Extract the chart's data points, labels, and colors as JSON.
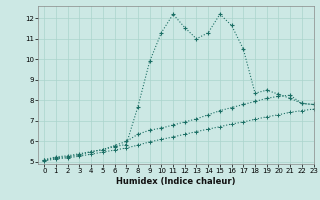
{
  "xlabel": "Humidex (Indice chaleur)",
  "bg_color": "#cce8e4",
  "grid_color": "#aad4cc",
  "line_color": "#1a6e64",
  "xlim": [
    -0.5,
    23
  ],
  "ylim": [
    4.9,
    12.6
  ],
  "yticks": [
    5,
    6,
    7,
    8,
    9,
    10,
    11,
    12
  ],
  "xticks": [
    0,
    1,
    2,
    3,
    4,
    5,
    6,
    7,
    8,
    9,
    10,
    11,
    12,
    13,
    14,
    15,
    16,
    17,
    18,
    19,
    20,
    21,
    22,
    23
  ],
  "line1_x": [
    0,
    1,
    2,
    3,
    4,
    5,
    6,
    7,
    8,
    9,
    10,
    11,
    12,
    13,
    14,
    15,
    16,
    17,
    18,
    19,
    20,
    21,
    22,
    23
  ],
  "line1_y": [
    5.1,
    5.25,
    5.3,
    5.4,
    5.5,
    5.6,
    5.75,
    5.85,
    7.7,
    9.9,
    11.3,
    12.2,
    11.55,
    11.0,
    11.3,
    12.2,
    11.65,
    10.5,
    8.35,
    8.5,
    8.3,
    8.1,
    7.85,
    7.8
  ],
  "line2_x": [
    0,
    1,
    2,
    3,
    4,
    5,
    6,
    7,
    8,
    9,
    10,
    11,
    12,
    13,
    14,
    15,
    16,
    17,
    18,
    19,
    20,
    21,
    22,
    23
  ],
  "line2_y": [
    5.1,
    5.2,
    5.25,
    5.35,
    5.5,
    5.6,
    5.8,
    6.0,
    6.35,
    6.55,
    6.65,
    6.8,
    6.95,
    7.1,
    7.3,
    7.5,
    7.65,
    7.8,
    7.95,
    8.1,
    8.2,
    8.25,
    7.85,
    7.8
  ],
  "line3_x": [
    0,
    1,
    2,
    3,
    4,
    5,
    6,
    7,
    8,
    9,
    10,
    11,
    12,
    13,
    14,
    15,
    16,
    17,
    18,
    19,
    20,
    21,
    22,
    23
  ],
  "line3_y": [
    5.05,
    5.15,
    5.2,
    5.28,
    5.38,
    5.48,
    5.58,
    5.68,
    5.82,
    5.98,
    6.1,
    6.22,
    6.35,
    6.48,
    6.6,
    6.72,
    6.85,
    6.95,
    7.08,
    7.2,
    7.3,
    7.42,
    7.5,
    7.58
  ]
}
